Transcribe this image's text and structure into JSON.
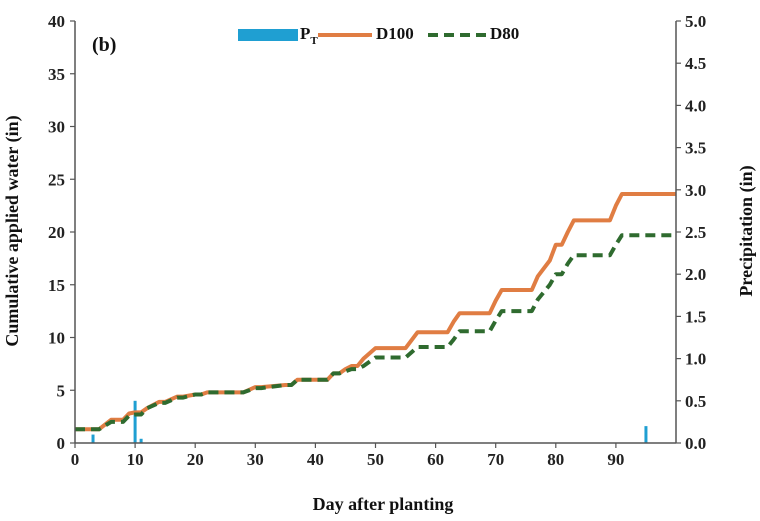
{
  "chart_data": {
    "type": "line",
    "panel_label": "(b)",
    "xlabel": "Day after planting",
    "ylabel": "Cumulative applied water (in)",
    "y2label": "Precipitation (in)",
    "xlim": [
      0,
      100
    ],
    "ylim": [
      0,
      40
    ],
    "y2lim": [
      0,
      5
    ],
    "x_ticks": [
      "0",
      "10",
      "20",
      "30",
      "40",
      "50",
      "60",
      "70",
      "80",
      "90"
    ],
    "x_tick_values": [
      0,
      10,
      20,
      30,
      40,
      50,
      60,
      70,
      80,
      90
    ],
    "y_ticks": [
      "0",
      "5",
      "10",
      "15",
      "20",
      "25",
      "30",
      "35",
      "40"
    ],
    "y_tick_values": [
      0,
      5,
      10,
      15,
      20,
      25,
      30,
      35,
      40
    ],
    "y2_ticks": [
      "0.0",
      "0.5",
      "1.0",
      "1.5",
      "2.0",
      "2.5",
      "3.0",
      "3.5",
      "4.0",
      "4.5",
      "5.0"
    ],
    "y2_tick_values": [
      0,
      0.5,
      1.0,
      1.5,
      2.0,
      2.5,
      3.0,
      3.5,
      4.0,
      4.5,
      5.0
    ],
    "legend": {
      "placement": "top-center",
      "entries": [
        "PT",
        "D100",
        "D80"
      ]
    },
    "legend_main": "P",
    "legend_sub": "T",
    "grid": false,
    "series": [
      {
        "name": "PT",
        "kind": "bar",
        "axis": "right",
        "color": "#1f9fd2",
        "x": [
          3,
          10,
          11,
          95
        ],
        "values": [
          0.1,
          0.5,
          0.05,
          0.2
        ]
      },
      {
        "name": "D100",
        "kind": "line",
        "axis": "left",
        "color": "#e07d43",
        "dash": "solid",
        "x": [
          0,
          4,
          6,
          8,
          9,
          10,
          11,
          12,
          14,
          15,
          17,
          18,
          20,
          21,
          22,
          23,
          27,
          28,
          30,
          31,
          35,
          36,
          37,
          39,
          40,
          42,
          43,
          44,
          45,
          46,
          47,
          48,
          50,
          51,
          54,
          55,
          57,
          58,
          62,
          63,
          64,
          65,
          69,
          70,
          71,
          72,
          76,
          77,
          79,
          80,
          81,
          82,
          83,
          89,
          90,
          91,
          100
        ],
        "values": [
          1.3,
          1.3,
          2.2,
          2.2,
          2.8,
          2.9,
          2.9,
          3.3,
          3.9,
          3.9,
          4.4,
          4.4,
          4.6,
          4.6,
          4.8,
          4.8,
          4.8,
          4.8,
          5.3,
          5.3,
          5.5,
          5.5,
          6.0,
          6.0,
          6.0,
          6.0,
          6.6,
          6.6,
          7.0,
          7.3,
          7.3,
          8.0,
          9.0,
          9.0,
          9.0,
          9.0,
          10.5,
          10.5,
          10.5,
          11.5,
          12.3,
          12.3,
          12.3,
          13.5,
          14.5,
          14.5,
          14.5,
          15.8,
          17.3,
          18.8,
          18.8,
          20.0,
          21.1,
          21.1,
          22.5,
          23.6,
          23.6
        ]
      },
      {
        "name": "D80",
        "kind": "line",
        "axis": "left",
        "color": "#2f6b2f",
        "dash": "dashed",
        "x": [
          0,
          4,
          6,
          8,
          9,
          10,
          11,
          12,
          14,
          15,
          17,
          18,
          20,
          21,
          22,
          23,
          27,
          28,
          30,
          31,
          35,
          36,
          37,
          39,
          40,
          42,
          43,
          44,
          45,
          46,
          47,
          48,
          50,
          51,
          54,
          55,
          57,
          58,
          62,
          63,
          64,
          65,
          69,
          70,
          71,
          72,
          76,
          77,
          79,
          80,
          81,
          82,
          83,
          89,
          90,
          91,
          100
        ],
        "values": [
          1.3,
          1.3,
          2.0,
          2.0,
          2.6,
          2.7,
          2.7,
          3.3,
          3.8,
          3.8,
          4.3,
          4.3,
          4.6,
          4.6,
          4.8,
          4.8,
          4.8,
          4.8,
          5.2,
          5.2,
          5.5,
          5.5,
          6.0,
          6.0,
          6.0,
          6.0,
          6.6,
          6.6,
          6.8,
          7.0,
          7.0,
          7.3,
          8.1,
          8.1,
          8.1,
          8.1,
          9.1,
          9.1,
          9.1,
          9.8,
          10.6,
          10.6,
          10.6,
          11.6,
          12.5,
          12.5,
          12.5,
          13.6,
          15.0,
          16.0,
          16.0,
          17.0,
          17.8,
          17.8,
          18.8,
          19.7,
          19.7
        ]
      }
    ]
  }
}
